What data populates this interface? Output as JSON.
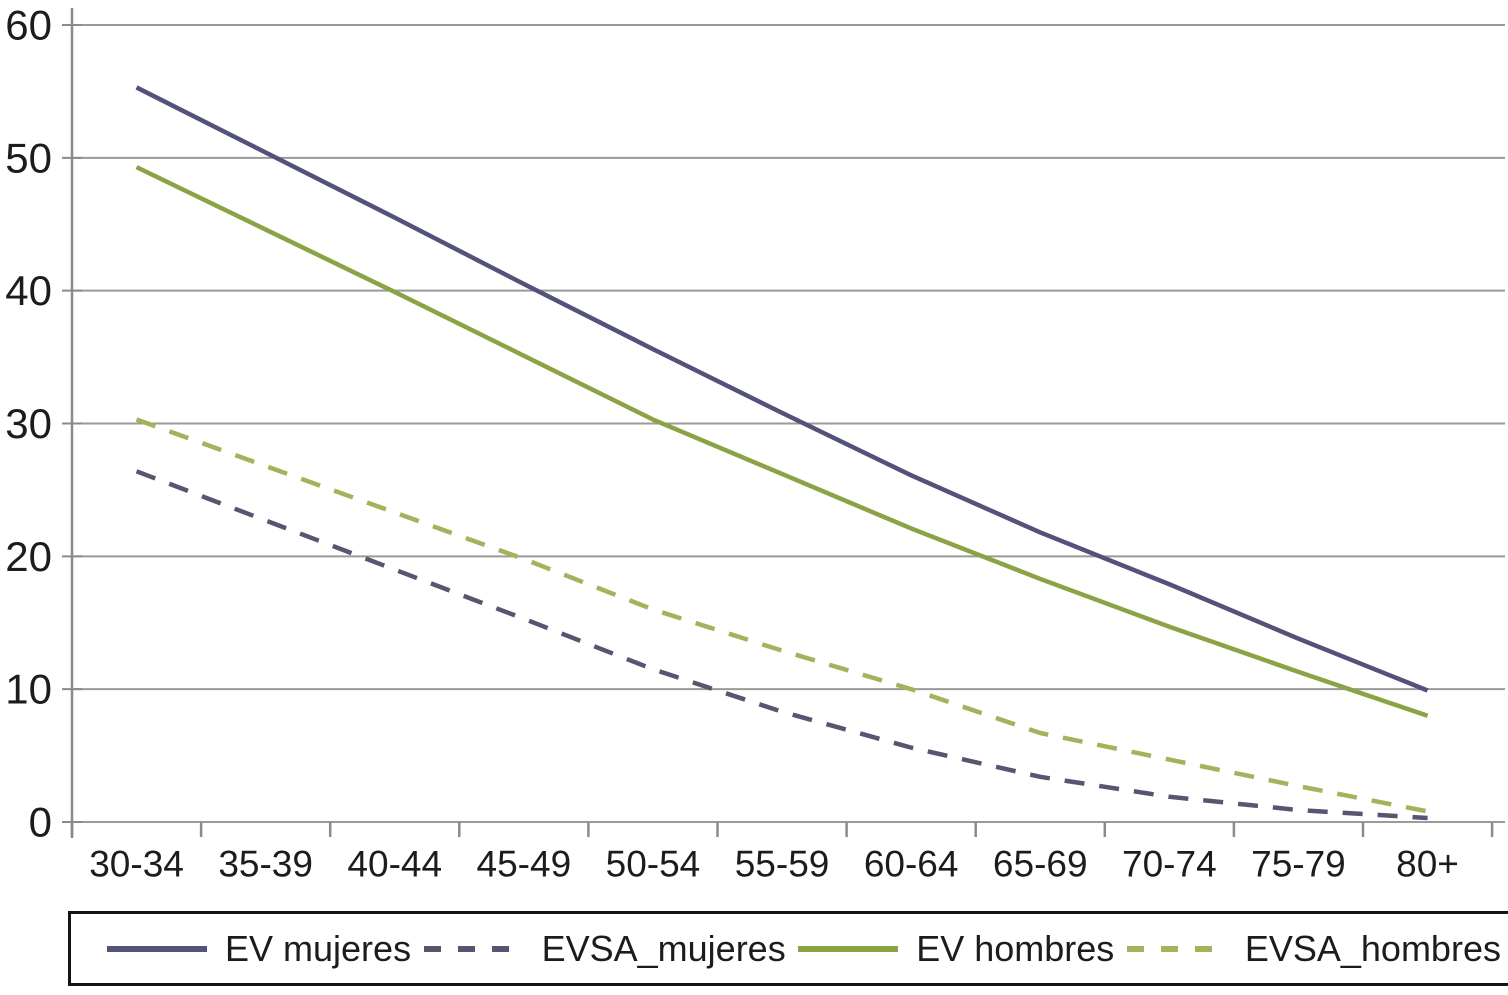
{
  "chart_data": {
    "type": "line",
    "title": "",
    "xlabel": "",
    "ylabel": "",
    "categories": [
      "30-34",
      "35-39",
      "40-44",
      "45-49",
      "50-54",
      "55-59",
      "60-64",
      "65-69",
      "70-74",
      "75-79",
      "80+"
    ],
    "y_ticks": [
      0,
      10,
      20,
      30,
      40,
      50,
      60
    ],
    "ylim": [
      0,
      60
    ],
    "grid": true,
    "legend_position": "bottom",
    "series": [
      {
        "name": "EV mujeres",
        "style": "solid",
        "color": "#53527b",
        "values": [
          55.3,
          50.4,
          45.5,
          40.5,
          35.6,
          30.8,
          26.1,
          21.8,
          17.9,
          13.8,
          9.9
        ]
      },
      {
        "name": "EVSA_mujeres",
        "style": "dashed",
        "color": "#565671",
        "values": [
          26.4,
          22.7,
          19.0,
          15.3,
          11.5,
          8.3,
          5.6,
          3.4,
          1.9,
          0.9,
          0.3
        ]
      },
      {
        "name": "EV hombres",
        "style": "solid",
        "color": "#8ba245",
        "values": [
          49.3,
          44.6,
          39.9,
          35.1,
          30.3,
          26.2,
          22.1,
          18.3,
          14.7,
          11.3,
          8.0
        ]
      },
      {
        "name": "EVSA_hombres",
        "style": "dashed",
        "color": "#a4b25c",
        "values": [
          30.3,
          26.8,
          23.3,
          19.8,
          16.0,
          12.9,
          10.0,
          6.7,
          4.7,
          2.7,
          0.8
        ]
      }
    ],
    "colors": {
      "gridline": "#9a9a9a",
      "axis": "#8a8a8a",
      "text": "#1c1c1c"
    }
  }
}
